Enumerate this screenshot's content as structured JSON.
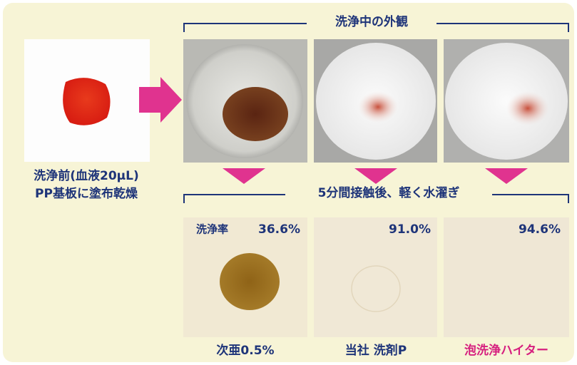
{
  "left": {
    "label_lines": [
      "洗浄前(血液20μL)",
      "PP基板に塗布乾燥"
    ]
  },
  "during": {
    "title": "洗浄中の外観"
  },
  "after": {
    "title": "5分間接触後、軽く水濯ぎ",
    "rate_label": "洗浄率",
    "results": [
      {
        "rate": "36.6%",
        "name": "次亜0.5%"
      },
      {
        "rate": "91.0%",
        "name": "当社 洗剤P"
      },
      {
        "rate": "94.6%",
        "name": "泡洗浄ハイター"
      }
    ]
  }
}
